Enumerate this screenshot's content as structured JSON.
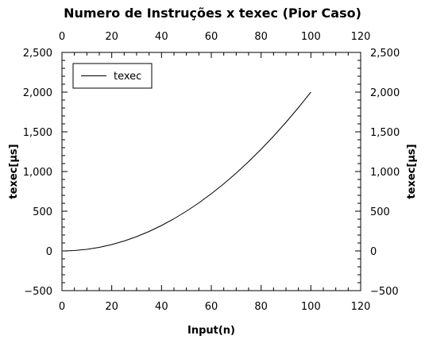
{
  "chart_data": {
    "type": "line",
    "title": "Numero de Instruções x texec (Pior Caso)",
    "xlabel": "Input(n)",
    "ylabel": "texec[µs]",
    "xlim": [
      0,
      120
    ],
    "ylim": [
      -500,
      2500
    ],
    "x_ticks": [
      0,
      20,
      40,
      60,
      80,
      100,
      120
    ],
    "x_tick_labels": [
      "0",
      "20",
      "40",
      "60",
      "80",
      "100",
      "120"
    ],
    "y_ticks": [
      -500,
      0,
      500,
      1000,
      1500,
      2000,
      2500
    ],
    "y_tick_labels": [
      "−500",
      "0",
      "500",
      "1,000",
      "1,500",
      "2,000",
      "2,500"
    ],
    "grid": false,
    "legend": "top-left",
    "series": [
      {
        "name": "texec",
        "color": "#000000",
        "x": [
          1,
          5,
          10,
          15,
          20,
          25,
          30,
          35,
          40,
          45,
          50,
          55,
          60,
          65,
          70,
          75,
          80,
          85,
          90,
          95,
          100
        ],
        "y": [
          0,
          5,
          20,
          45,
          80,
          125,
          180,
          245,
          320,
          405,
          500,
          605,
          720,
          845,
          980,
          1125,
          1280,
          1445,
          1620,
          1805,
          2000
        ]
      }
    ]
  }
}
